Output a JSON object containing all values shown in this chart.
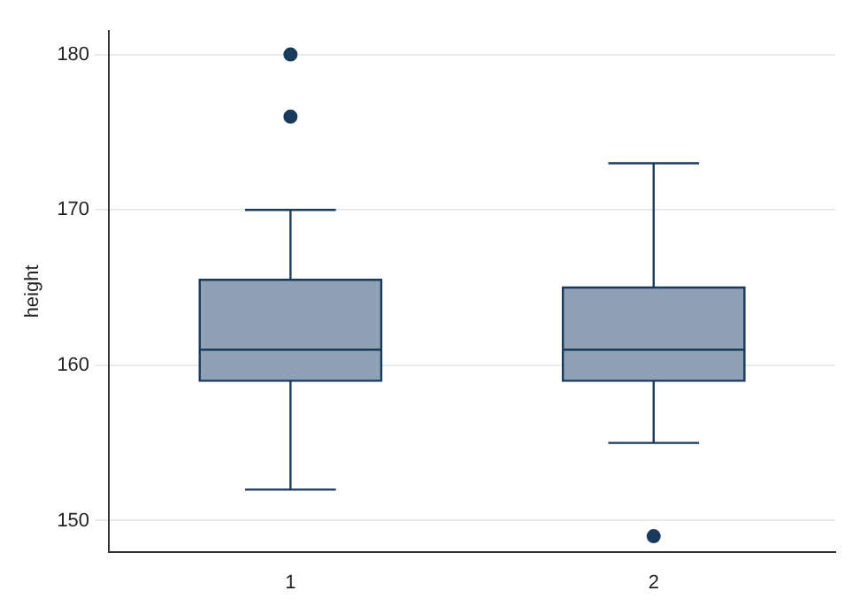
{
  "chart_data": {
    "type": "box",
    "ylabel": "height",
    "categories": [
      "1",
      "2"
    ],
    "boxes": [
      {
        "low": 152,
        "q1": 159,
        "median": 161,
        "q3": 165.5,
        "high": 170,
        "outliers": [
          176,
          180
        ]
      },
      {
        "low": 155,
        "q1": 159,
        "median": 161,
        "q3": 165,
        "high": 173,
        "outliers": [
          149
        ]
      }
    ],
    "color": "#8fa1b7",
    "ylim": [
      148,
      181.5
    ],
    "yticks": [
      150,
      160,
      170,
      180
    ],
    "grid": "y"
  }
}
